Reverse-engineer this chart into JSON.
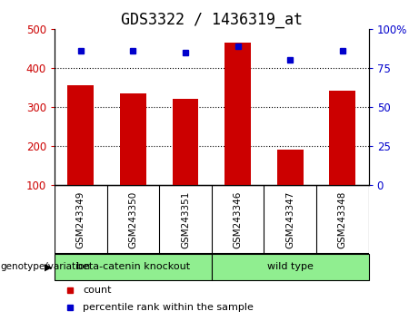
{
  "title": "GDS3322 / 1436319_at",
  "categories": [
    "GSM243349",
    "GSM243350",
    "GSM243351",
    "GSM243346",
    "GSM243347",
    "GSM243348"
  ],
  "bar_values": [
    355,
    335,
    320,
    465,
    190,
    342
  ],
  "percentile_values": [
    86,
    86,
    85,
    89,
    80,
    86
  ],
  "bar_color": "#cc0000",
  "dot_color": "#0000cc",
  "ylim_left": [
    100,
    500
  ],
  "ylim_right": [
    0,
    100
  ],
  "yticks_left": [
    100,
    200,
    300,
    400,
    500
  ],
  "yticks_right": [
    0,
    25,
    50,
    75,
    100
  ],
  "ytick_labels_right": [
    "0",
    "25",
    "50",
    "75",
    "100%"
  ],
  "grid_values": [
    200,
    300,
    400
  ],
  "group1_label": "beta-catenin knockout",
  "group2_label": "wild type",
  "group1_color": "#90EE90",
  "group2_color": "#90EE90",
  "group1_count": 3,
  "group2_count": 3,
  "xlabel_group": "genotype/variation",
  "legend_count": "count",
  "legend_percentile": "percentile rank within the sample",
  "tick_bg_color": "#d0d0d0",
  "plot_bg": "#ffffff",
  "title_fontsize": 12,
  "axis_label_color_left": "#cc0000",
  "axis_label_color_right": "#0000cc",
  "bar_width": 0.5
}
